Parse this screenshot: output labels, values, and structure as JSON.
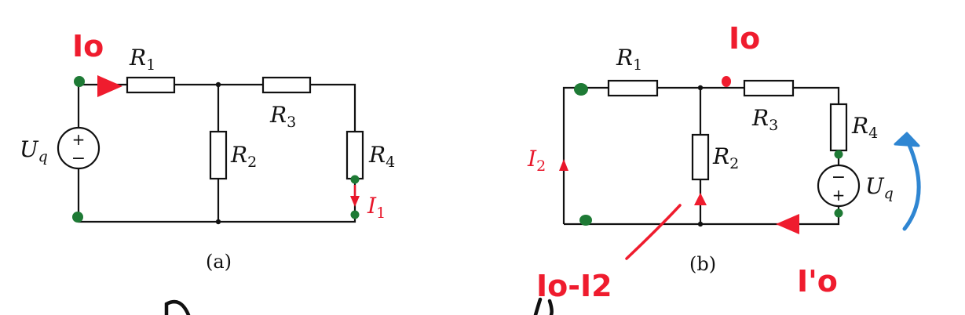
{
  "diagram_a": {
    "caption": "(a)",
    "resistors": {
      "r1": "R",
      "r1_sub": "1",
      "r2": "R",
      "r2_sub": "2",
      "r3": "R",
      "r3_sub": "3",
      "r4": "R",
      "r4_sub": "4"
    },
    "source": {
      "name": "U",
      "sub": "q",
      "plus": "+",
      "minus": "−"
    },
    "current": {
      "name": "I",
      "sub": "1"
    },
    "handwritten": {
      "io": "Io"
    }
  },
  "diagram_b": {
    "caption": "(b)",
    "resistors": {
      "r1": "R",
      "r1_sub": "1",
      "r2": "R",
      "r2_sub": "2",
      "r3": "R",
      "r3_sub": "3",
      "r4": "R",
      "r4_sub": "4"
    },
    "source": {
      "name": "U",
      "sub": "q",
      "plus": "+",
      "minus": "−"
    },
    "current": {
      "name": "I",
      "sub": "2"
    },
    "handwritten": {
      "io_top": "Io",
      "io_minus_i2": "Io-I2",
      "io_prime": "I'o"
    }
  },
  "colors": {
    "wire": "#111111",
    "red_ink": "#ef1c2e",
    "green_dot": "#1e7a35",
    "blue_ink": "#2f86d2"
  }
}
